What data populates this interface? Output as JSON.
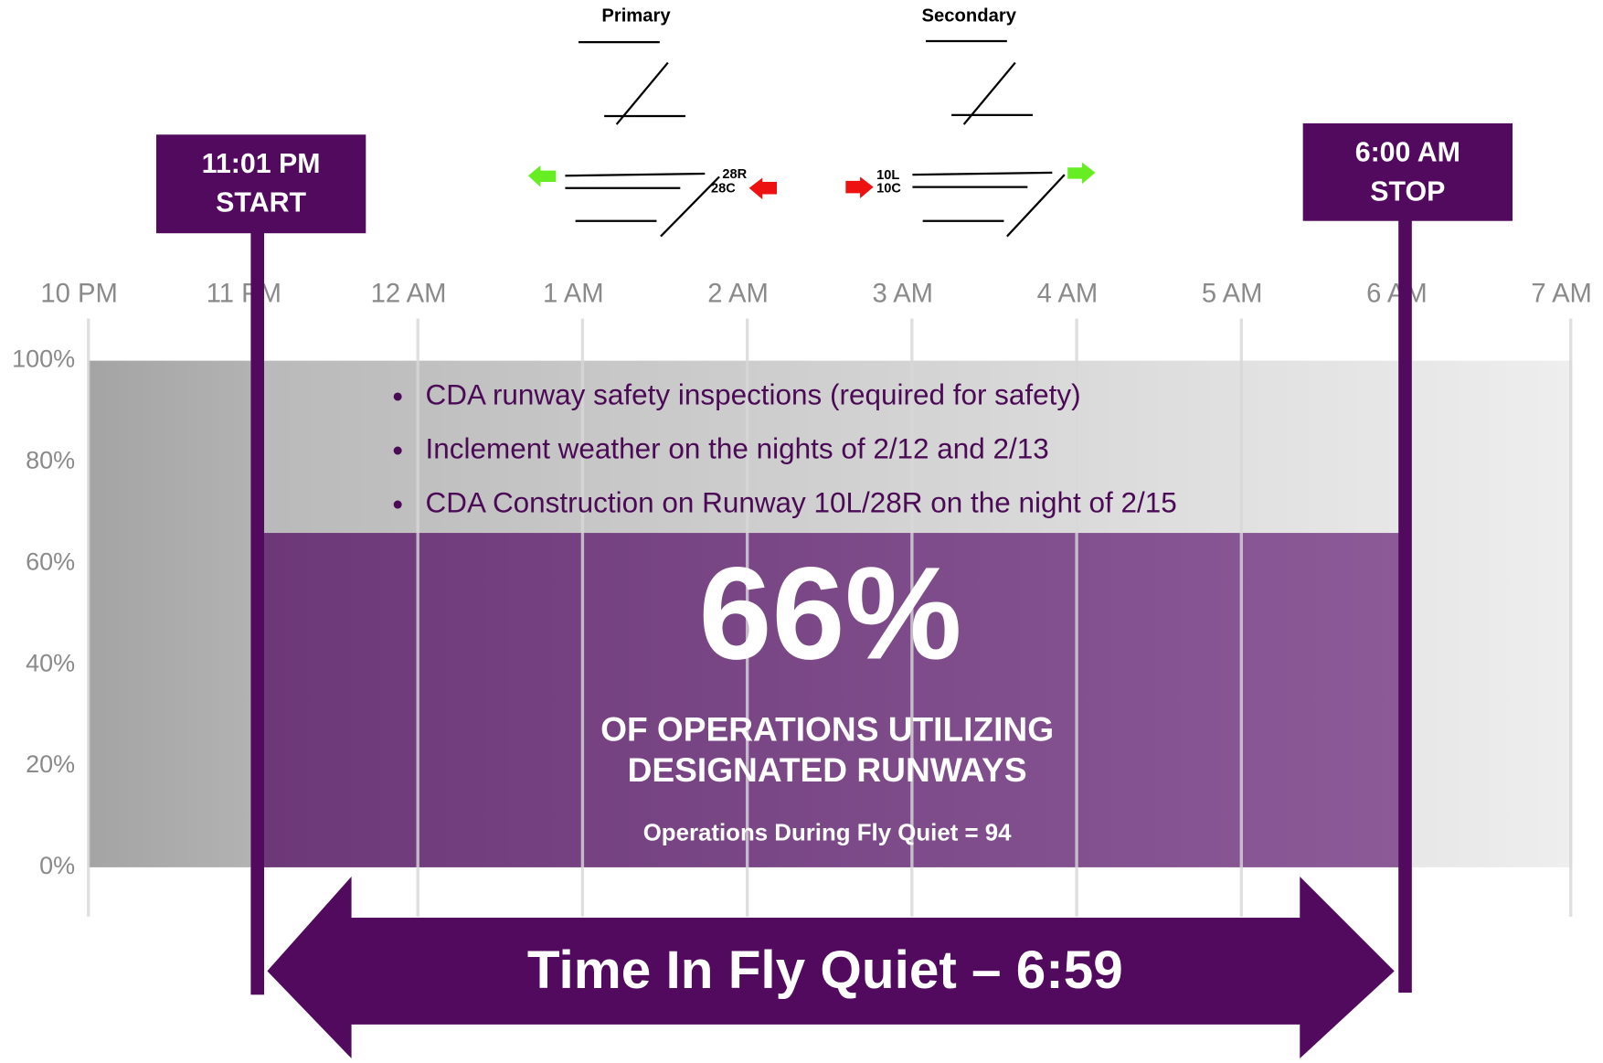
{
  "chart_data": {
    "type": "bar",
    "xtick_labels": [
      "10 PM",
      "11 PM",
      "12 AM",
      "1 AM",
      "2 AM",
      "3 AM",
      "4 AM",
      "5 AM",
      "6 AM",
      "7 AM"
    ],
    "ylim": [
      0,
      100
    ],
    "yticks": [
      {
        "value": 0,
        "label": "0%"
      },
      {
        "value": 20,
        "label": "20%"
      },
      {
        "value": 40,
        "label": "40%"
      },
      {
        "value": 60,
        "label": "60%"
      },
      {
        "value": 80,
        "label": "80%"
      },
      {
        "value": 100,
        "label": "100%"
      }
    ],
    "values": [
      66
    ],
    "value_labels": [
      "66%"
    ],
    "color": "#7a4286",
    "headline": [
      "OF OPERATIONS UTILIZING",
      "DESIGNATED RUNWAYS"
    ],
    "note": "Operations During Fly Quiet = 94",
    "bullets": [
      "CDA runway safety inspections (required for safety)",
      "Inclement weather on the nights of 2/12 and 2/13",
      "CDA Construction on Runway 10L/28R on the night of 2/15"
    ],
    "start": {
      "time": "11:01 PM",
      "label": "START"
    },
    "stop": {
      "time": "6:00 AM",
      "label": "STOP"
    },
    "duration": "Time In Fly Quiet – 6:59"
  },
  "runways": {
    "primary": {
      "title": "Primary",
      "labels": [
        "28R",
        "28C"
      ]
    },
    "secondary": {
      "title": "Secondary",
      "labels": [
        "10L",
        "10C"
      ]
    }
  }
}
